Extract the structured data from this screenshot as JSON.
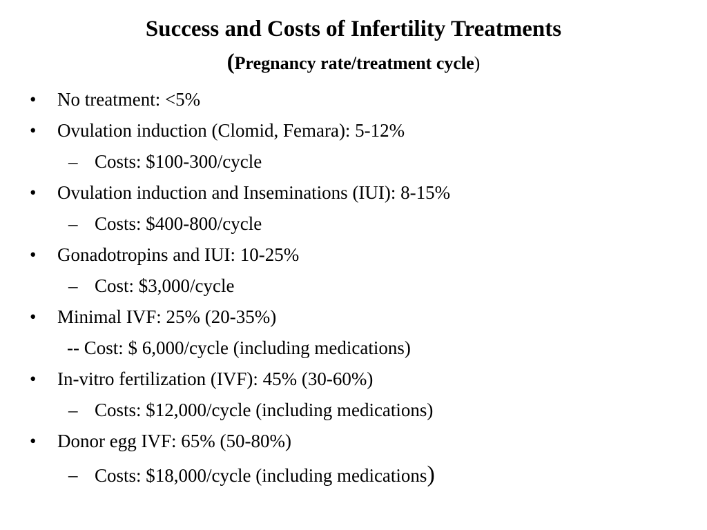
{
  "slide": {
    "title": "Success and Costs of Infertility Treatments",
    "subtitle_open": "(",
    "subtitle_text": "Pregnancy rate/treatment cycle",
    "subtitle_close": ")",
    "bullet_char": "•",
    "dash_char": "–",
    "items": [
      {
        "text": "No treatment: <5%"
      },
      {
        "text": "Ovulation induction (Clomid, Femara): 5-12%"
      },
      {
        "text": "Costs:  $100-300/cycle"
      },
      {
        "text": "Ovulation induction and Inseminations (IUI): 8-15%"
      },
      {
        "text": "Costs:  $400-800/cycle"
      },
      {
        "text": "Gonadotropins and IUI: 10-25%"
      },
      {
        "text": "Cost: $3,000/cycle"
      },
      {
        "text": "Minimal IVF: 25% (20-35%)"
      },
      {
        "text": "-- Cost: $ 6,000/cycle (including medications)"
      },
      {
        "text": "In-vitro fertilization (IVF): 45% (30-60%)"
      },
      {
        "text": "Costs: $12,000/cycle (including medications)"
      },
      {
        "text": "Donor egg IVF: 65% (50-80%)"
      },
      {
        "text": "Costs: $18,000/cycle (including medications",
        "close": ")"
      }
    ]
  }
}
